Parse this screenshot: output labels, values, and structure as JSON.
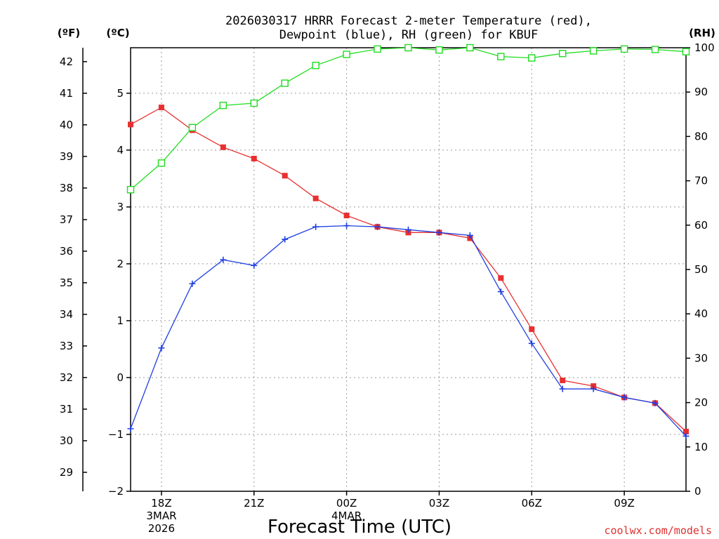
{
  "chart_data": {
    "type": "line",
    "title": [
      "2026030317 HRRR Forecast 2-meter Temperature (red),",
      "Dewpoint (blue), RH (green) for KBUF"
    ],
    "xlabel": "Forecast Time (UTC)",
    "credit": "coolwx.com/models",
    "units": {
      "fahrenheit": "(ºF)",
      "celsius": "(ºC)",
      "rh": "(RH)"
    },
    "x": [
      "17Z",
      "18Z",
      "19Z",
      "20Z",
      "21Z",
      "22Z",
      "23Z",
      "00Z",
      "01Z",
      "02Z",
      "03Z",
      "04Z",
      "05Z",
      "06Z",
      "07Z",
      "08Z",
      "09Z",
      "10Z",
      "11Z"
    ],
    "x_ticks": [
      {
        "hour": 1,
        "label": "18Z",
        "sub": [
          "3MAR",
          "2026"
        ]
      },
      {
        "hour": 4,
        "label": "21Z",
        "sub": []
      },
      {
        "hour": 7,
        "label": "00Z",
        "sub": [
          "4MAR"
        ]
      },
      {
        "hour": 10,
        "label": "03Z",
        "sub": []
      },
      {
        "hour": 13,
        "label": "06Z",
        "sub": []
      },
      {
        "hour": 16,
        "label": "09Z",
        "sub": []
      }
    ],
    "celsius_axis": {
      "range": [
        -2,
        5.8
      ],
      "ticks": [
        -2,
        -1,
        0,
        1,
        2,
        3,
        4,
        5
      ],
      "labels": [
        "−2",
        "−1",
        "0",
        "1",
        "2",
        "3",
        "4",
        "5"
      ]
    },
    "fahrenheit_axis": {
      "ticks": [
        29,
        30,
        31,
        32,
        33,
        34,
        35,
        36,
        37,
        38,
        39,
        40,
        41,
        42
      ]
    },
    "rh_axis": {
      "range": [
        0,
        100
      ],
      "ticks": [
        0,
        10,
        20,
        30,
        40,
        50,
        60,
        70,
        80,
        90,
        100
      ]
    },
    "series": [
      {
        "name": "Temperature",
        "unit": "C",
        "color": "#e83030",
        "marker": "filled-square",
        "values": [
          4.45,
          4.75,
          4.35,
          4.05,
          3.85,
          3.55,
          3.15,
          2.85,
          2.65,
          2.55,
          2.55,
          2.45,
          1.75,
          0.85,
          -0.05,
          -0.15,
          -0.35,
          -0.45,
          -0.95
        ]
      },
      {
        "name": "Dewpoint",
        "unit": "C",
        "color": "#2040e0",
        "marker": "plus",
        "values": [
          -0.9,
          0.52,
          1.65,
          2.07,
          1.97,
          2.43,
          2.65,
          2.67,
          2.65,
          2.6,
          2.55,
          2.5,
          1.51,
          0.6,
          -0.2,
          -0.2,
          -0.35,
          -0.45,
          -1.03
        ]
      },
      {
        "name": "Relative Humidity",
        "unit": "%",
        "color": "#20dd20",
        "marker": "open-square",
        "values": [
          68,
          74,
          82,
          87,
          87.5,
          92,
          96,
          98.5,
          99.7,
          100,
          99.5,
          100,
          98,
          97.7,
          98.7,
          99.3,
          99.7,
          99.6,
          99.1
        ]
      }
    ]
  }
}
